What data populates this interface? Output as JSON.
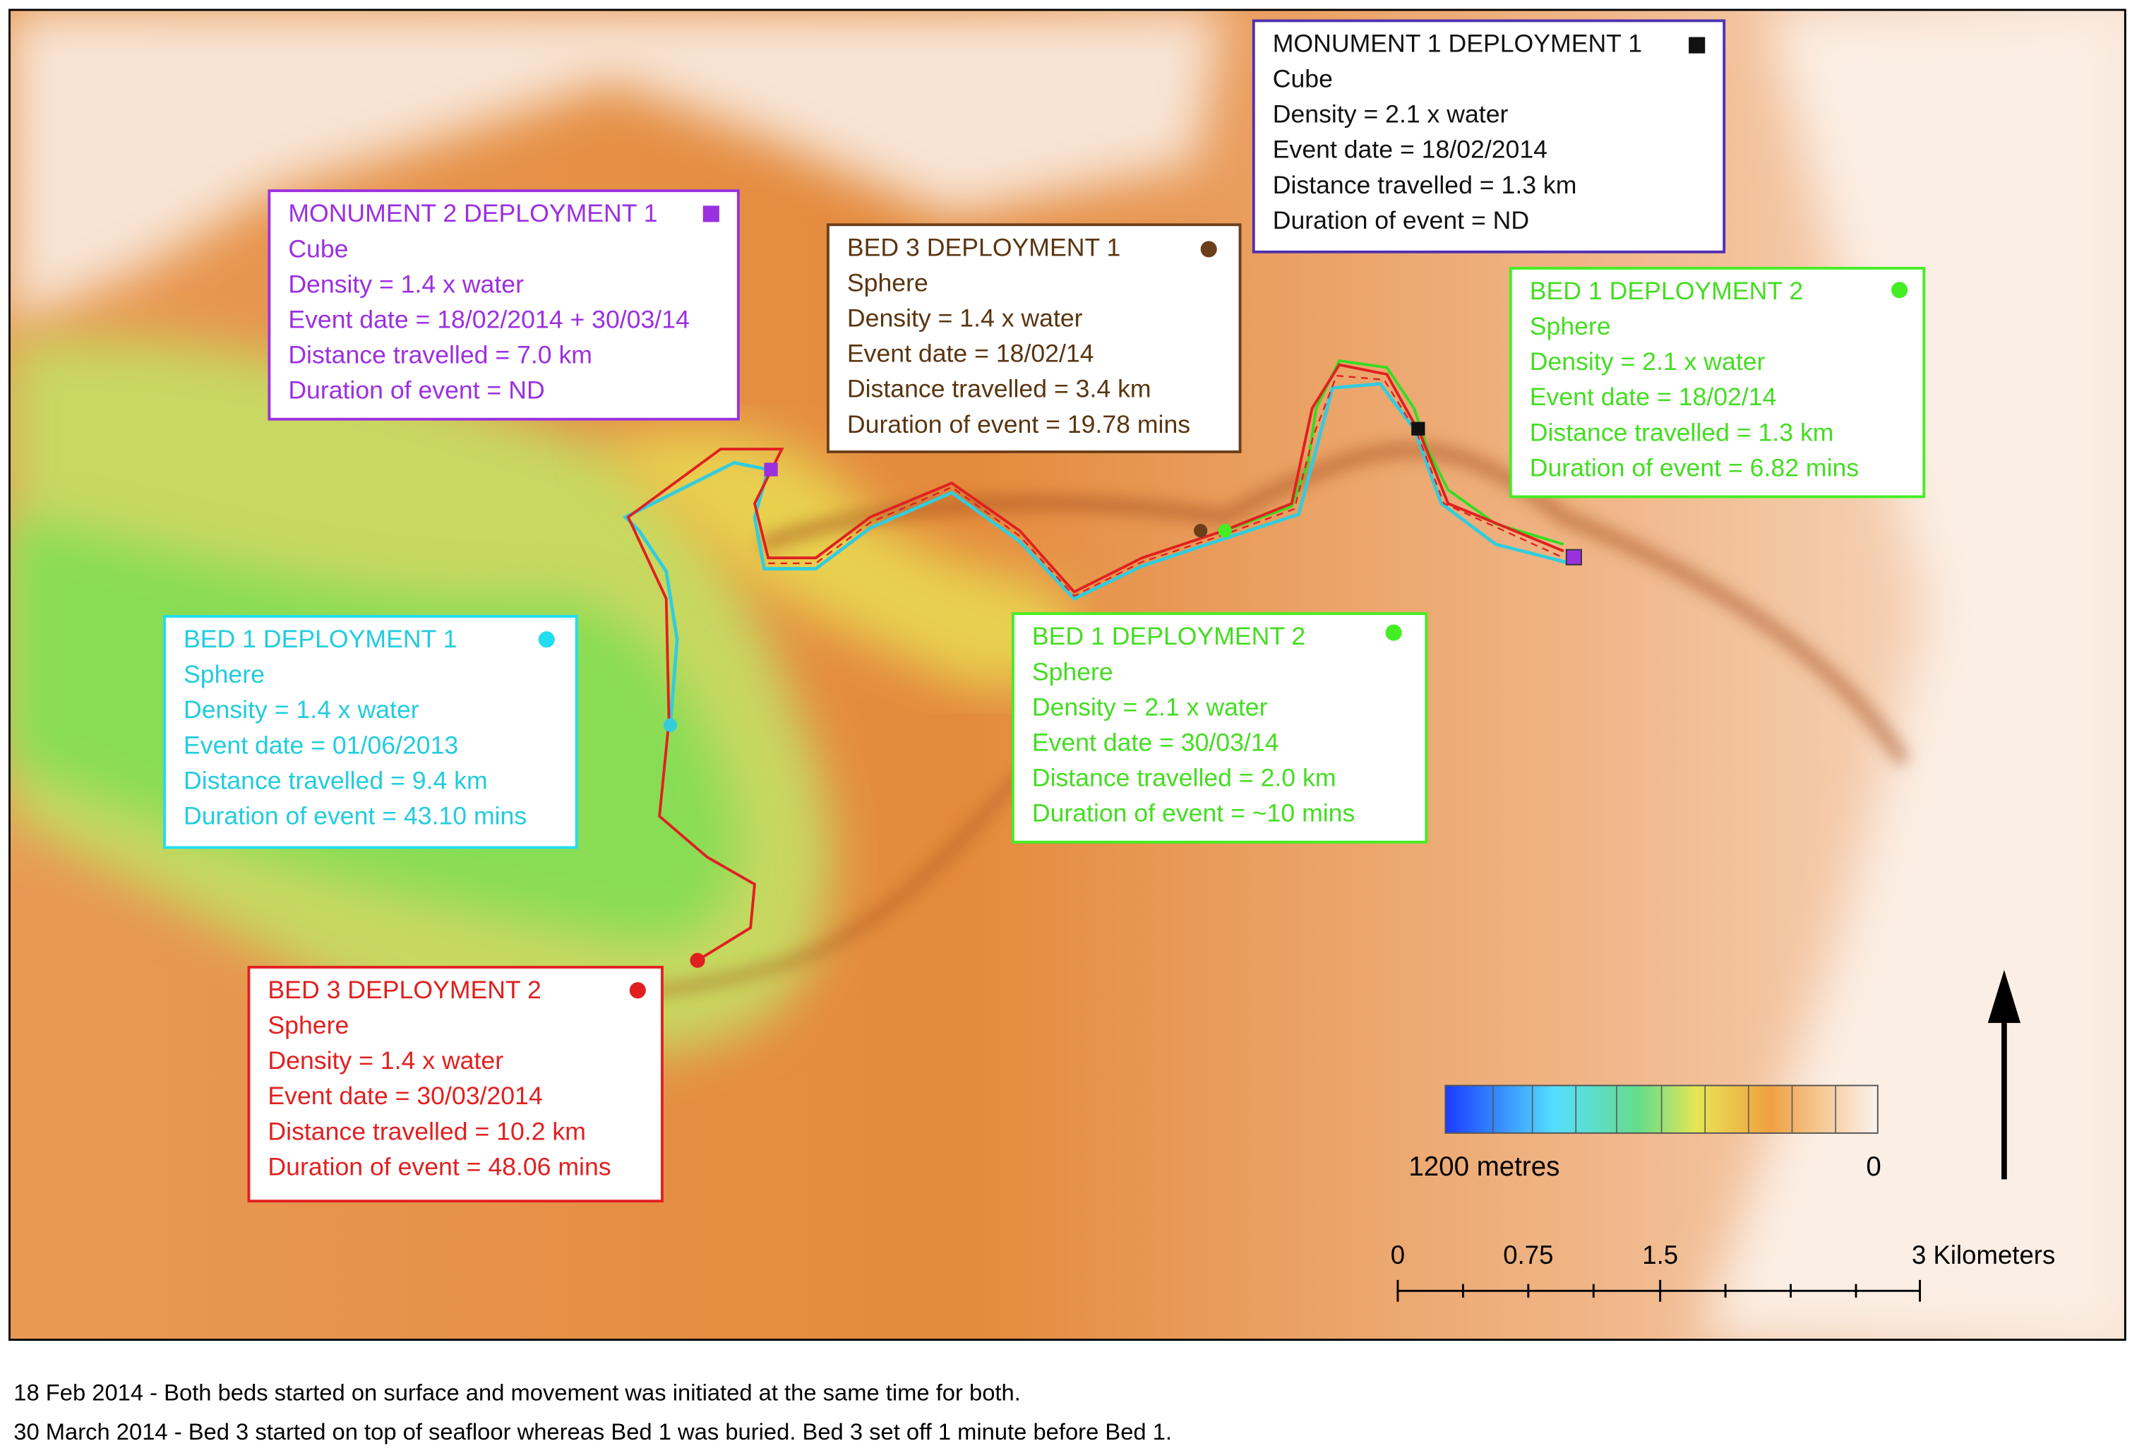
{
  "annotations": [
    {
      "title": "MONUMENT 2 DEPLOYMENT 1",
      "lines": [
        "Cube",
        "Density = 1.4 x water",
        "Event date = 18/02/2014 + 30/03/14",
        "Distance travelled =  7.0 km",
        "Duration of event = ND"
      ]
    },
    {
      "title": "BED 3 DEPLOYMENT 1",
      "lines": [
        "Sphere",
        "Density = 1.4 x water",
        "Event date = 18/02/14",
        "Distance travelled =  3.4 km",
        "Duration of event = 19.78 mins"
      ]
    },
    {
      "title": "MONUMENT 1 DEPLOYMENT 1",
      "lines": [
        "Cube",
        "Density = 2.1 x water",
        "Event date = 18/02/2014",
        "Distance travelled =  1.3 km",
        "Duration of event = ND"
      ]
    },
    {
      "title": "BED 1 DEPLOYMENT 2",
      "lines": [
        "Sphere",
        "Density = 2.1 x water",
        "Event date = 18/02/14",
        "Distance travelled = 1.3 km",
        "Duration of event = 6.82 mins"
      ]
    },
    {
      "title": "BED 1 DEPLOYMENT 1",
      "lines": [
        "Sphere",
        "Density = 1.4 x water",
        "Event date = 01/06/2013",
        "Distance travelled = 9.4 km",
        "Duration of event = 43.10 mins"
      ]
    },
    {
      "title": "BED 1 DEPLOYMENT 2",
      "lines": [
        "Sphere",
        "Density = 2.1 x water",
        "Event date = 30/03/14",
        "Distance travelled = 2.0 km",
        "Duration of event = ~10 mins"
      ]
    },
    {
      "title": "BED 3 DEPLOYMENT 2",
      "lines": [
        "Sphere",
        "Density = 1.4 x water",
        "Event date = 30/03/2014",
        "Distance travelled = 10.2 km",
        "Duration of event = 48.06 mins"
      ]
    }
  ],
  "legend": {
    "low_label": "1200 metres",
    "high_label": "0"
  },
  "scale_bar": {
    "labels": [
      "0",
      "0.75",
      "1.5",
      "3 Kilometers"
    ]
  },
  "caption": [
    "18 Feb 2014 - Both beds started on surface and movement was initiated at the same time for both.",
    "30 March 2014 - Bed 3 started on top of seafloor whereas Bed 1 was buried. Bed 3 set off 1 minute before Bed 1."
  ]
}
